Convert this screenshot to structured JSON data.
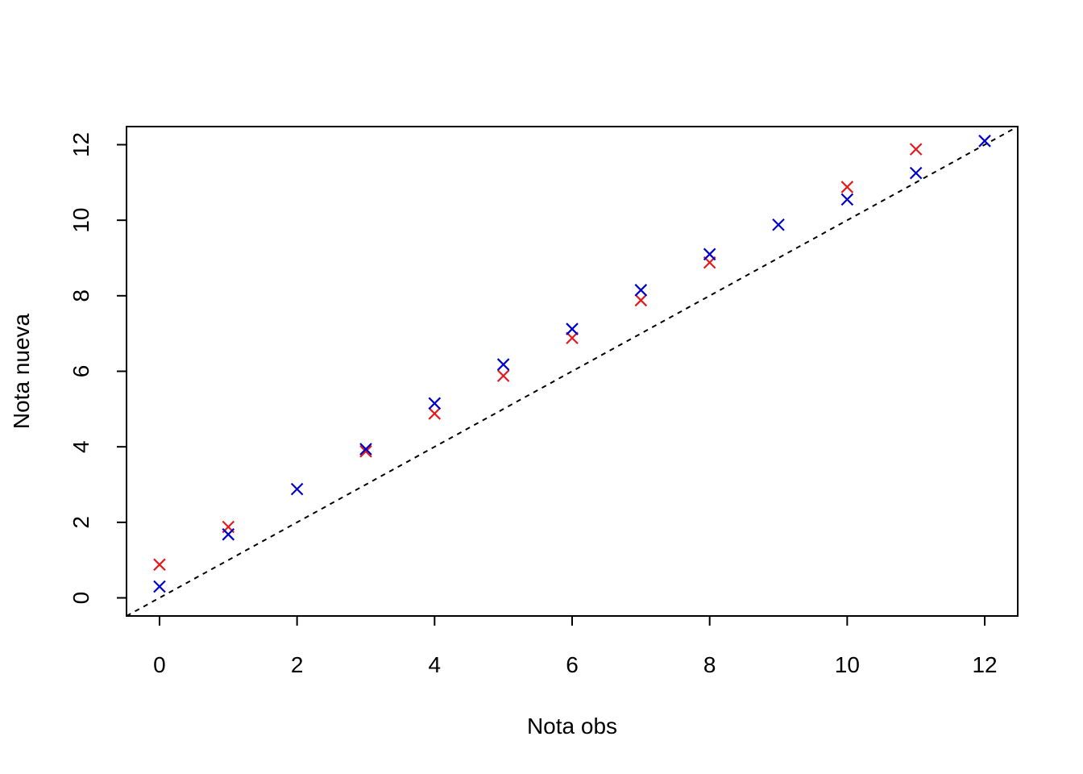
{
  "chart_data": {
    "type": "scatter",
    "title": "",
    "xlabel": "Nota obs",
    "ylabel": "Nota nueva",
    "xlim": [
      -0.48,
      12.48
    ],
    "ylim": [
      -0.48,
      12.48
    ],
    "xticks": [
      0,
      2,
      4,
      6,
      8,
      10,
      12
    ],
    "yticks": [
      0,
      2,
      4,
      6,
      8,
      10,
      12
    ],
    "grid": false,
    "legend": "none",
    "marker": "x",
    "series": [
      {
        "color": "#e41a1c",
        "points": [
          [
            0,
            0.88
          ],
          [
            1,
            1.88
          ],
          [
            3,
            3.88
          ],
          [
            4,
            4.88
          ],
          [
            5,
            5.88
          ],
          [
            6,
            6.88
          ],
          [
            7,
            7.88
          ],
          [
            8,
            8.88
          ],
          [
            10,
            10.88
          ],
          [
            11,
            11.88
          ]
        ]
      },
      {
        "color": "#0000cd",
        "points": [
          [
            0,
            0.3
          ],
          [
            1,
            1.68
          ],
          [
            2,
            2.88
          ],
          [
            3,
            3.94
          ],
          [
            4,
            5.15
          ],
          [
            5,
            6.18
          ],
          [
            6,
            7.12
          ],
          [
            7,
            8.15
          ],
          [
            8,
            9.1
          ],
          [
            9,
            9.88
          ],
          [
            10,
            10.55
          ],
          [
            11,
            11.25
          ],
          [
            12,
            12.1
          ]
        ]
      }
    ],
    "reference_line": {
      "type": "identity",
      "style": "dashed",
      "color": "#000000"
    }
  }
}
